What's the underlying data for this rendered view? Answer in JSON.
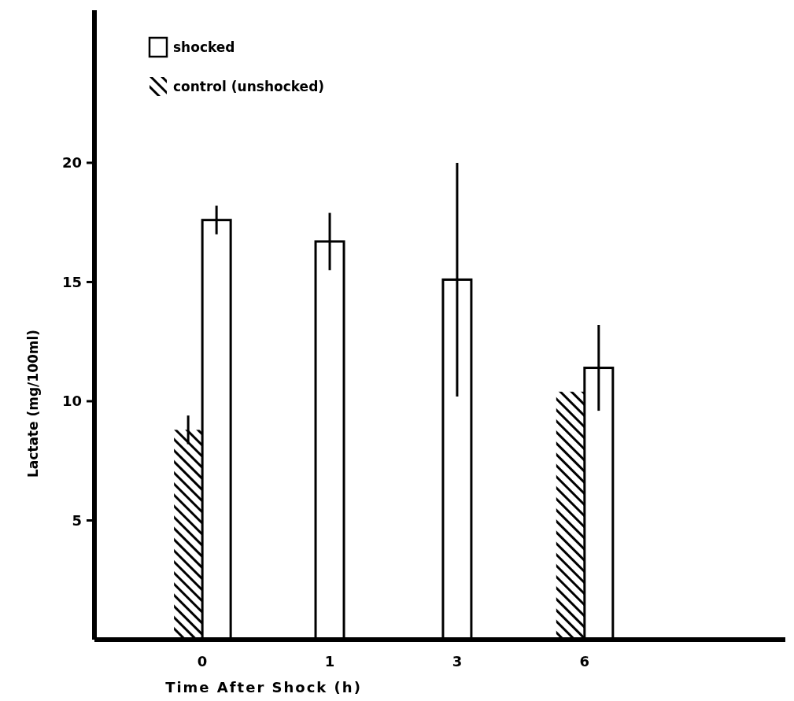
{
  "chart_data": {
    "type": "bar",
    "xlabel": "Time After Shock (h)",
    "ylabel": "Lactate (mg/100ml)",
    "categories": [
      "0",
      "1",
      "3",
      "6"
    ],
    "series": [
      {
        "name": "control (unshocked)",
        "color": "#000000",
        "values": [
          8.8,
          null,
          null,
          10.4
        ],
        "errors": [
          0.6,
          null,
          null,
          null
        ]
      },
      {
        "name": "shocked",
        "color": "#ffffff",
        "values": [
          17.6,
          16.7,
          15.1,
          11.4
        ],
        "errors": [
          0.6,
          1.2,
          4.9,
          1.8
        ]
      }
    ],
    "ylim": [
      0,
      26.4
    ],
    "yticks": [
      5,
      10,
      15,
      20
    ],
    "legend": "top left",
    "grid": false
  }
}
